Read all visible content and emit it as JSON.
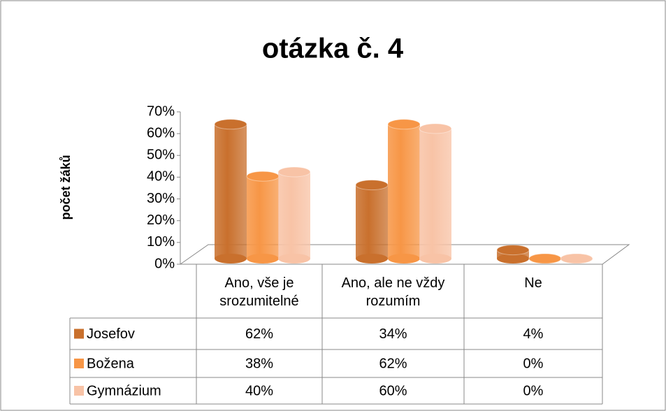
{
  "chart_data": {
    "type": "cylinder3d",
    "title": "otázka č. 4",
    "y_label": "počet žáků",
    "categories": [
      "Ano, vše je srozumitelné",
      "Ano, ale ne vždy rozumím",
      "Ne"
    ],
    "series": [
      {
        "name": "Josefov",
        "color": "#c9702d",
        "values": [
          62,
          34,
          4
        ],
        "value_labels": [
          "62%",
          "34%",
          "4%"
        ]
      },
      {
        "name": "Božena",
        "color": "#f79646",
        "values": [
          38,
          62,
          0
        ],
        "value_labels": [
          "38%",
          "62%",
          "0%"
        ]
      },
      {
        "name": "Gymnázium",
        "color": "#f8c3a6",
        "values": [
          40,
          60,
          0
        ],
        "value_labels": [
          "40%",
          "60%",
          "0%"
        ]
      }
    ],
    "ylim": [
      0,
      70
    ],
    "yticks": [
      {
        "value": 0,
        "label": "0%"
      },
      {
        "value": 10,
        "label": "10%"
      },
      {
        "value": 20,
        "label": "20%"
      },
      {
        "value": 30,
        "label": "30%"
      },
      {
        "value": 40,
        "label": "40%"
      },
      {
        "value": 50,
        "label": "50%"
      },
      {
        "value": 60,
        "label": "60%"
      },
      {
        "value": 70,
        "label": "70%"
      }
    ]
  }
}
